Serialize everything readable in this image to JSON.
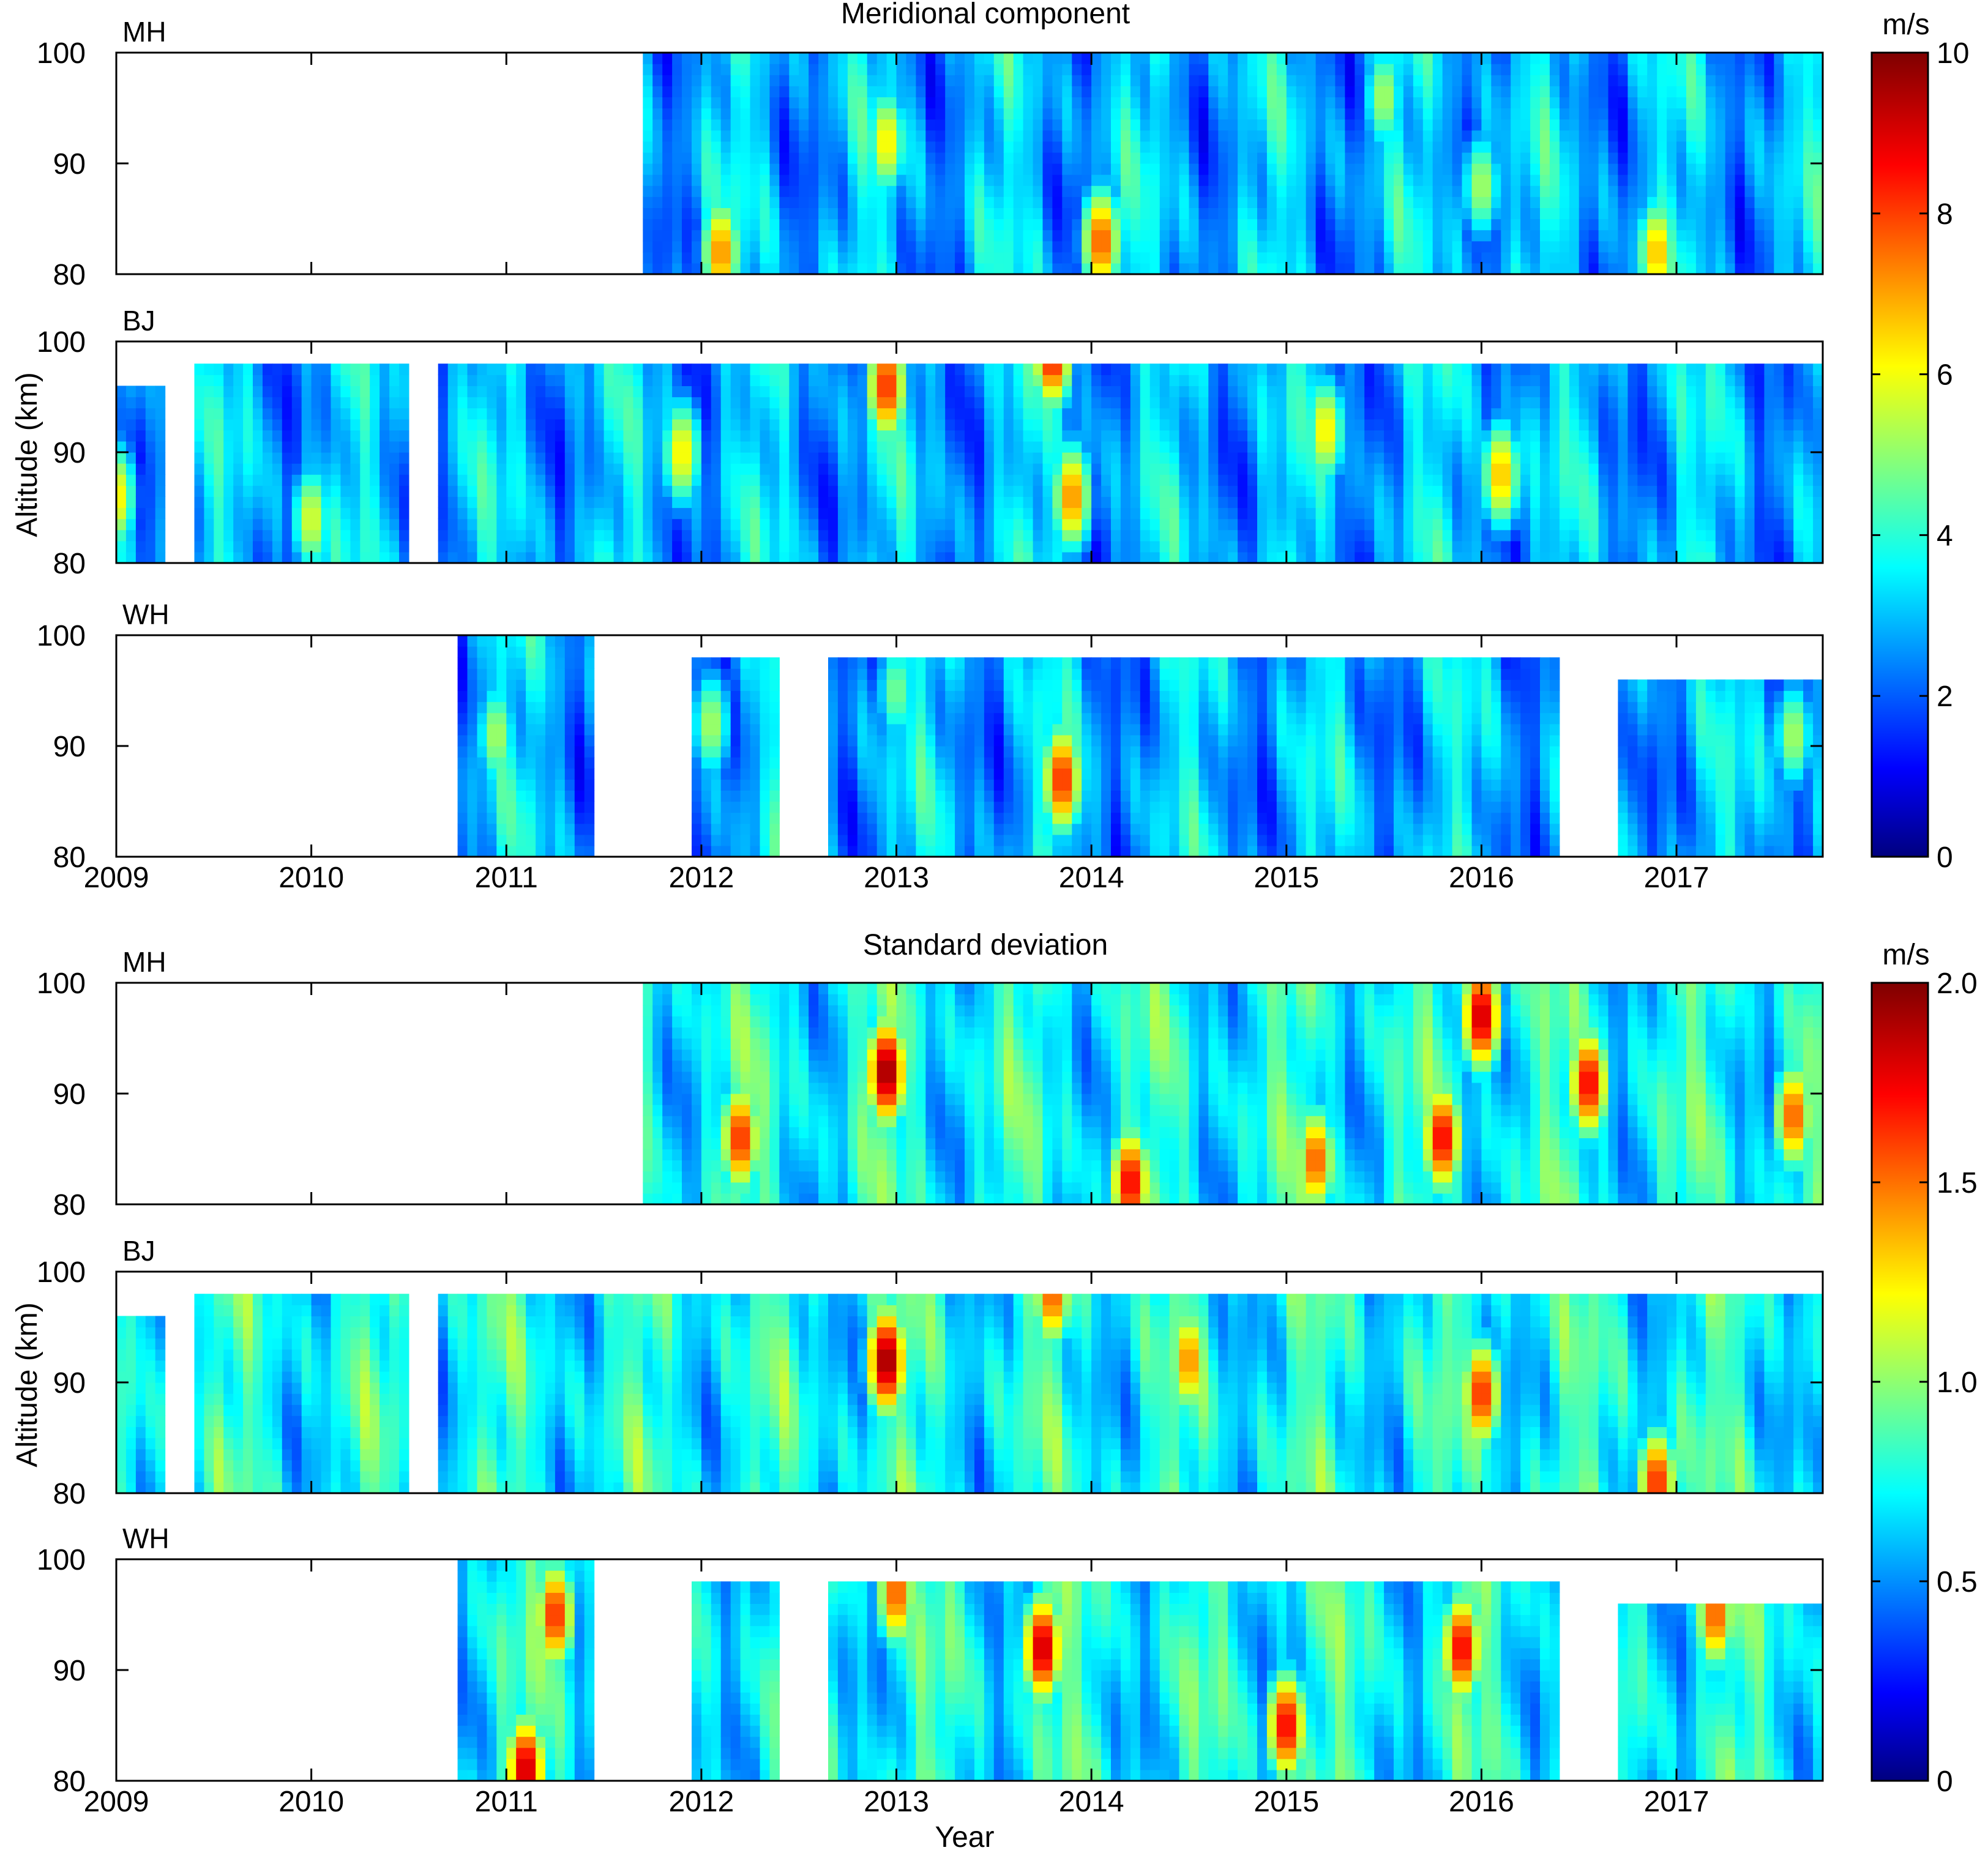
{
  "chart_data": [
    {
      "type": "heatmap",
      "title": "Meridional component",
      "xlabel": "",
      "ylabel": "Altitude (km)",
      "x_ticks": [
        "2009",
        "2010",
        "2011",
        "2012",
        "2013",
        "2014",
        "2015",
        "2016",
        "2017"
      ],
      "xlim": [
        2009.0,
        2017.75
      ],
      "ylim": [
        80,
        100
      ],
      "y_ticks": [
        "80",
        "90",
        "100"
      ],
      "colorbar": {
        "unit": "m/s",
        "range": [
          0,
          10
        ],
        "ticks": [
          "0",
          "2",
          "4",
          "6",
          "8",
          "10"
        ],
        "colormap": "jet"
      },
      "panels": [
        {
          "label": "MH",
          "coverage": [
            {
              "start": 2011.7,
              "end": 2017.75,
              "top": 100
            }
          ],
          "hotspots": [
            {
              "year": 2012.1,
              "alt": 82,
              "value": 7.5
            },
            {
              "year": 2012.95,
              "alt": 92,
              "value": 6.5
            },
            {
              "year": 2014.05,
              "alt": 83,
              "value": 8.0
            },
            {
              "year": 2015.5,
              "alt": 96,
              "value": 5.5
            },
            {
              "year": 2016.0,
              "alt": 88,
              "value": 5.5
            },
            {
              "year": 2016.9,
              "alt": 82,
              "value": 7.0
            }
          ]
        },
        {
          "label": "BJ",
          "coverage": [
            {
              "start": 2009.0,
              "end": 2009.23,
              "top": 96
            },
            {
              "start": 2009.4,
              "end": 2010.5,
              "top": 98
            },
            {
              "start": 2010.65,
              "end": 2017.75,
              "top": 98
            }
          ],
          "hotspots": [
            {
              "year": 2009.0,
              "alt": 86,
              "value": 6.5
            },
            {
              "year": 2010.0,
              "alt": 84,
              "value": 6.0
            },
            {
              "year": 2011.9,
              "alt": 90,
              "value": 6.5
            },
            {
              "year": 2012.95,
              "alt": 96,
              "value": 8.5
            },
            {
              "year": 2013.8,
              "alt": 99,
              "value": 9.0
            },
            {
              "year": 2013.9,
              "alt": 86,
              "value": 7.5
            },
            {
              "year": 2015.2,
              "alt": 92,
              "value": 6.5
            },
            {
              "year": 2016.1,
              "alt": 88,
              "value": 7.0
            }
          ]
        },
        {
          "label": "WH",
          "coverage": [
            {
              "start": 2010.75,
              "end": 2011.45,
              "top": 100
            },
            {
              "start": 2011.95,
              "end": 2012.4,
              "top": 98
            },
            {
              "start": 2012.65,
              "end": 2016.4,
              "top": 98
            },
            {
              "start": 2016.7,
              "end": 2017.75,
              "top": 96
            }
          ],
          "hotspots": [
            {
              "year": 2010.95,
              "alt": 91,
              "value": 5.5
            },
            {
              "year": 2012.05,
              "alt": 92,
              "value": 5.5
            },
            {
              "year": 2013.0,
              "alt": 95,
              "value": 5.0
            },
            {
              "year": 2013.85,
              "alt": 87,
              "value": 8.5
            },
            {
              "year": 2017.6,
              "alt": 91,
              "value": 5.5
            }
          ]
        }
      ]
    },
    {
      "type": "heatmap",
      "title": "Standard deviation",
      "xlabel": "Year",
      "ylabel": "Altitude (km)",
      "x_ticks": [
        "2009",
        "2010",
        "2011",
        "2012",
        "2013",
        "2014",
        "2015",
        "2016",
        "2017"
      ],
      "xlim": [
        2009.0,
        2017.75
      ],
      "ylim": [
        80,
        100
      ],
      "y_ticks": [
        "80",
        "90",
        "100"
      ],
      "colorbar": {
        "unit": "m/s",
        "range": [
          0,
          2
        ],
        "ticks": [
          "0",
          "0.5",
          "1.0",
          "1.5",
          "2.0"
        ],
        "colormap": "jet"
      },
      "panels": [
        {
          "label": "MH",
          "coverage": [
            {
              "start": 2011.7,
              "end": 2017.75,
              "top": 100
            }
          ],
          "hotspots": [
            {
              "year": 2012.2,
              "alt": 86,
              "value": 1.7
            },
            {
              "year": 2012.95,
              "alt": 92,
              "value": 2.0
            },
            {
              "year": 2014.2,
              "alt": 82,
              "value": 1.8
            },
            {
              "year": 2015.15,
              "alt": 84,
              "value": 1.6
            },
            {
              "year": 2015.8,
              "alt": 86,
              "value": 1.8
            },
            {
              "year": 2016.0,
              "alt": 97,
              "value": 1.9
            },
            {
              "year": 2016.55,
              "alt": 91,
              "value": 1.8
            },
            {
              "year": 2017.6,
              "alt": 88,
              "value": 1.6
            }
          ]
        },
        {
          "label": "BJ",
          "coverage": [
            {
              "start": 2009.0,
              "end": 2009.23,
              "top": 96
            },
            {
              "start": 2009.4,
              "end": 2010.5,
              "top": 98
            },
            {
              "start": 2010.65,
              "end": 2017.75,
              "top": 98
            }
          ],
          "hotspots": [
            {
              "year": 2012.95,
              "alt": 92,
              "value": 2.0
            },
            {
              "year": 2013.8,
              "alt": 98,
              "value": 1.6
            },
            {
              "year": 2014.5,
              "alt": 92,
              "value": 1.5
            },
            {
              "year": 2016.0,
              "alt": 89,
              "value": 1.7
            },
            {
              "year": 2016.9,
              "alt": 81,
              "value": 1.7
            }
          ]
        },
        {
          "label": "WH",
          "coverage": [
            {
              "start": 2010.75,
              "end": 2011.45,
              "top": 100
            },
            {
              "start": 2011.95,
              "end": 2012.4,
              "top": 98
            },
            {
              "start": 2012.65,
              "end": 2016.4,
              "top": 98
            },
            {
              "start": 2016.7,
              "end": 2017.75,
              "top": 96
            }
          ],
          "hotspots": [
            {
              "year": 2011.1,
              "alt": 81,
              "value": 1.9
            },
            {
              "year": 2011.25,
              "alt": 95,
              "value": 1.7
            },
            {
              "year": 2013.0,
              "alt": 97,
              "value": 1.6
            },
            {
              "year": 2013.75,
              "alt": 92,
              "value": 1.9
            },
            {
              "year": 2015.0,
              "alt": 85,
              "value": 1.8
            },
            {
              "year": 2015.9,
              "alt": 92,
              "value": 1.8
            },
            {
              "year": 2017.2,
              "alt": 95,
              "value": 1.6
            }
          ]
        }
      ]
    }
  ]
}
